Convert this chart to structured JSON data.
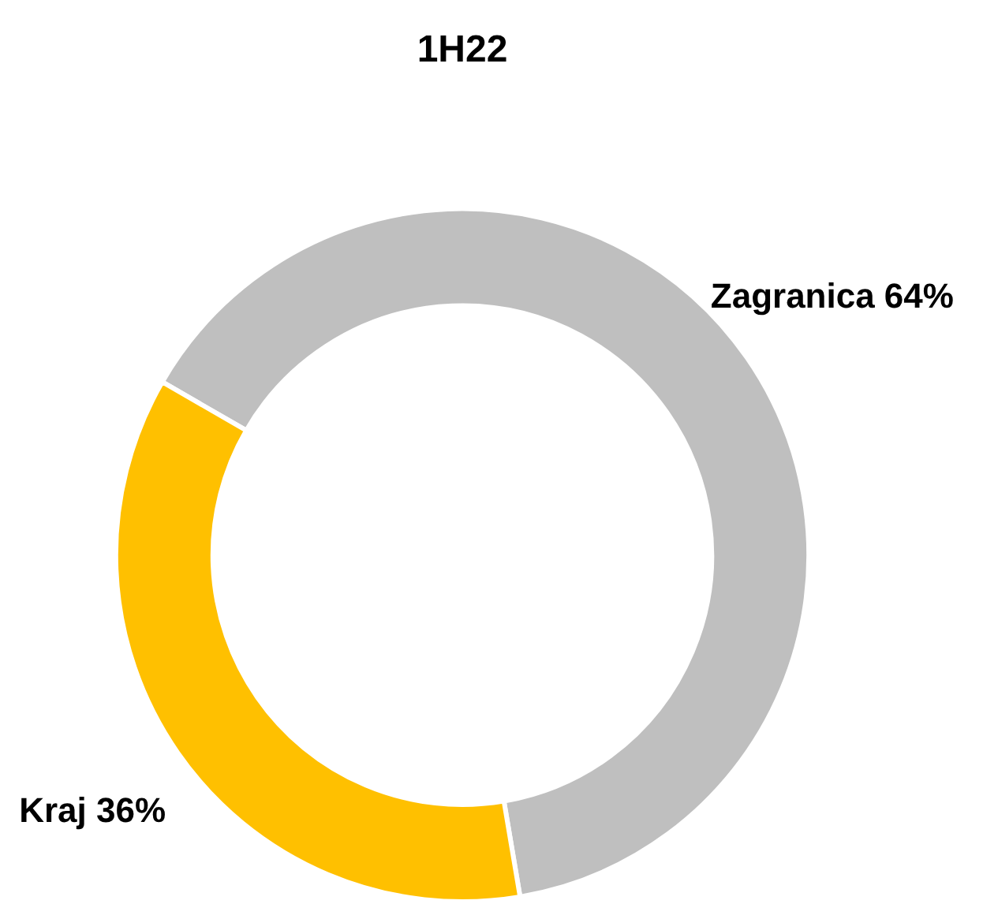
{
  "chart_data": {
    "type": "donut",
    "title": "1H22",
    "categories": [
      "Zagranica",
      "Kraj"
    ],
    "values": [
      64,
      36
    ],
    "value_labels": [
      "64%",
      "36%"
    ],
    "colors": [
      "#bfbfbf",
      "#ffc000"
    ]
  }
}
